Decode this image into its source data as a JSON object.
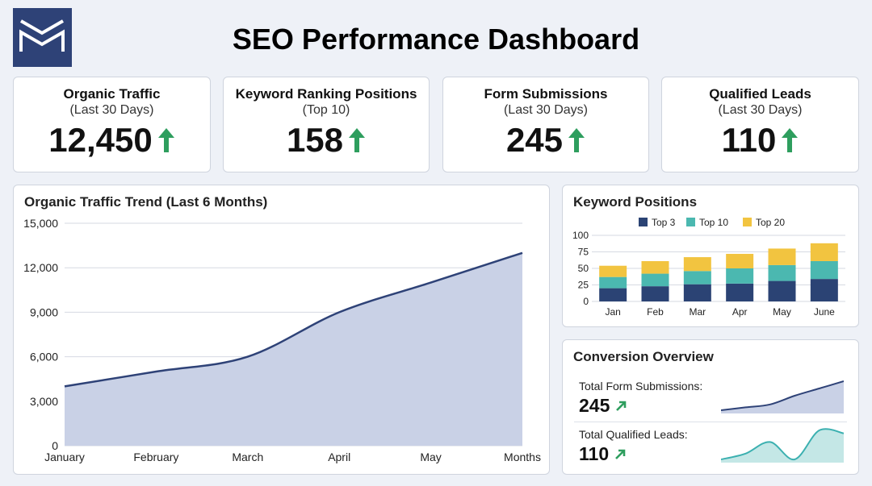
{
  "header": {
    "title": "SEO Performance Dashboard"
  },
  "kpis": [
    {
      "title": "Organic Traffic",
      "subtitle": "(Last 30 Days)",
      "value": "12,450",
      "trend": "up"
    },
    {
      "title": "Keyword Ranking Positions",
      "subtitle": "(Top 10)",
      "value": "158",
      "trend": "up"
    },
    {
      "title": "Form Submissions",
      "subtitle": "(Last 30 Days)",
      "value": "245",
      "trend": "up"
    },
    {
      "title": "Qualified Leads",
      "subtitle": "(Last 30 Days)",
      "value": "110",
      "trend": "up"
    }
  ],
  "colors": {
    "brand": "#2e4277",
    "up_arrow": "#2e9e5e",
    "line": "#2e4277",
    "area": "#c9d1e6",
    "top3": "#2b4374",
    "top10": "#4bb8b0",
    "top20": "#f2c440",
    "leads_line": "#3bb0b0",
    "leads_area": "#c4e7e6"
  },
  "traffic_panel": {
    "title": "Organic Traffic Trend (Last 6 Months)"
  },
  "keyword_panel": {
    "title": "Keyword Positions"
  },
  "conversion_panel": {
    "title": "Conversion Overview",
    "rows": [
      {
        "label": "Total Form Submissions:",
        "value": "245"
      },
      {
        "label": "Total Qualified Leads:",
        "value": "110"
      }
    ]
  },
  "chart_data": [
    {
      "type": "area",
      "title": "Organic Traffic Trend (Last 6 Months)",
      "categories": [
        "January",
        "February",
        "March",
        "April",
        "May",
        "Months"
      ],
      "series": [
        {
          "values": [
            4000,
            5000,
            6000,
            9000,
            11000,
            13000
          ]
        }
      ],
      "ylim": [
        0,
        15000
      ],
      "yticks": [
        0,
        3000,
        6000,
        9000,
        12000,
        15000
      ],
      "ytick_labels": [
        "0",
        "3,000",
        "6,000",
        "9,000",
        "12,000",
        "15,000"
      ],
      "grid": true
    },
    {
      "type": "bar",
      "stacked": true,
      "title": "Keyword Positions",
      "categories": [
        "Jan",
        "Feb",
        "Mar",
        "Apr",
        "May",
        "June"
      ],
      "series": [
        {
          "name": "Top 3",
          "values": [
            20,
            23,
            26,
            27,
            31,
            34
          ]
        },
        {
          "name": "Top 10",
          "values": [
            17,
            19,
            20,
            23,
            24,
            27
          ]
        },
        {
          "name": "Top 20",
          "values": [
            17,
            19,
            21,
            22,
            25,
            27
          ]
        }
      ],
      "ylim": [
        0,
        100
      ],
      "yticks": [
        0,
        25,
        50,
        75,
        100
      ],
      "legend": "top",
      "grid": true
    },
    {
      "type": "area",
      "title": "Total Form Submissions",
      "series": [
        {
          "values": [
            10,
            12,
            14,
            20,
            25,
            30
          ]
        }
      ]
    },
    {
      "type": "area",
      "title": "Total Qualified Leads",
      "series": [
        {
          "values": [
            10,
            14,
            22,
            10,
            30,
            28
          ]
        }
      ]
    }
  ]
}
